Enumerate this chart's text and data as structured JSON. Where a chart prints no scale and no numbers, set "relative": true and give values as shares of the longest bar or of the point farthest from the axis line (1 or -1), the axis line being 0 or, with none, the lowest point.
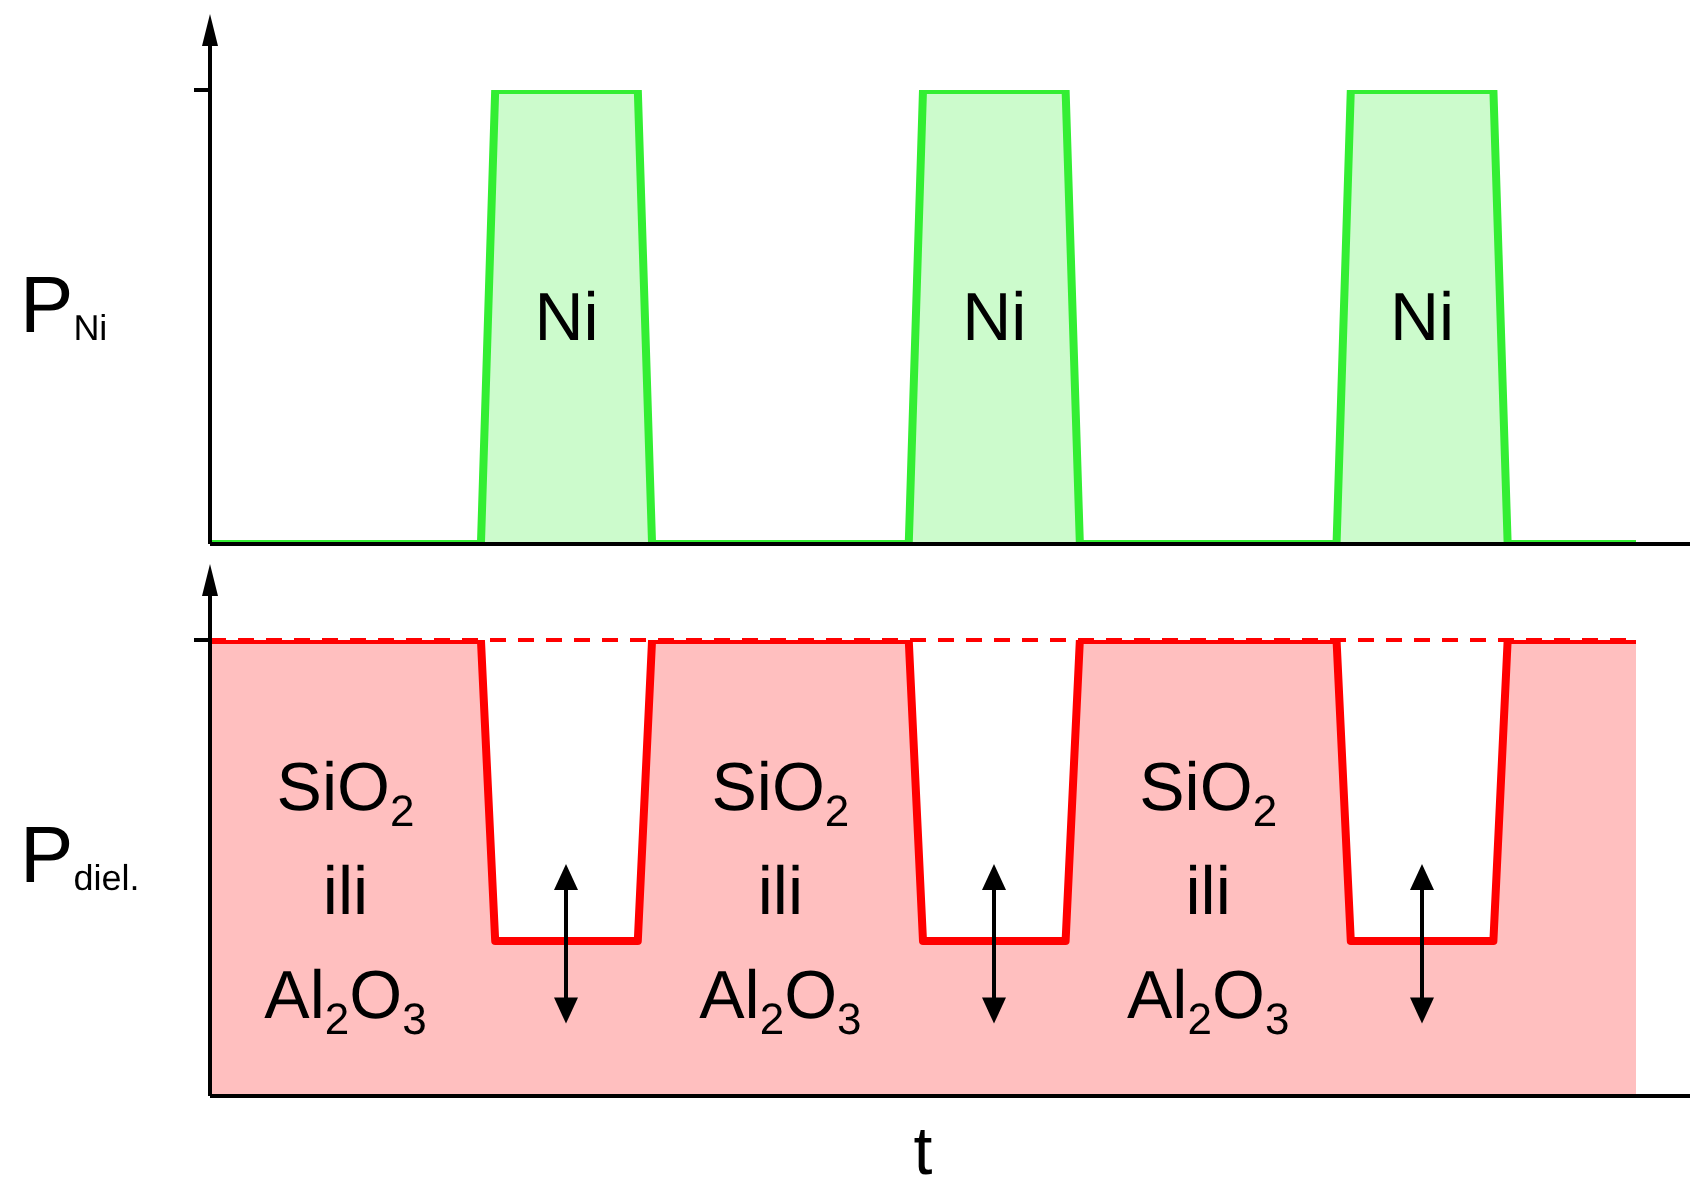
{
  "chart_data": [
    {
      "type": "area",
      "relative": true,
      "tick_labels": false,
      "ylabel": "P$_{Ni}$",
      "categories": [
        null,
        null,
        null,
        null,
        null,
        null,
        null,
        null,
        null,
        null,
        null,
        null,
        null,
        null,
        null,
        null,
        null,
        null,
        null,
        null,
        null,
        null,
        null,
        null,
        null,
        null,
        null,
        null,
        null,
        null,
        null,
        null,
        null,
        null,
        null,
        null,
        null,
        null,
        null,
        null,
        null,
        null,
        null,
        null,
        null,
        null,
        null,
        null,
        null,
        null,
        null,
        null,
        null,
        null,
        null,
        null,
        null,
        null,
        null,
        null,
        null,
        null,
        null,
        null,
        null,
        null,
        null,
        null,
        null,
        null,
        null,
        null,
        null,
        null,
        null,
        null,
        null,
        null,
        null,
        null,
        null,
        null,
        null,
        null,
        null,
        null,
        null,
        null,
        null,
        null,
        null,
        null,
        null,
        null,
        null,
        null,
        null,
        null,
        null,
        null,
        null
      ],
      "series": [
        {
          "color": "#33ee33",
          "values": [
            0,
            0,
            0,
            0,
            0,
            0,
            0,
            0,
            0,
            0,
            0,
            0,
            0,
            0,
            0,
            0,
            0,
            0,
            0,
            0,
            1,
            1,
            1,
            1,
            1,
            1,
            1,
            1,
            1,
            1,
            1,
            0,
            0,
            0,
            0,
            0,
            0,
            0,
            0,
            0,
            0,
            0,
            0,
            0,
            0,
            0,
            0,
            0,
            0,
            0,
            1,
            1,
            1,
            1,
            1,
            1,
            1,
            1,
            1,
            1,
            1,
            0,
            0,
            0,
            0,
            0,
            0,
            0,
            0,
            0,
            0,
            0,
            0,
            0,
            0,
            0,
            0,
            0,
            0,
            0,
            1,
            1,
            1,
            1,
            1,
            1,
            1,
            1,
            1,
            1,
            1,
            0,
            0,
            0,
            0,
            0,
            0,
            0,
            0,
            0,
            0
          ]
        }
      ],
      "annotations": [
        "Ni",
        "Ni",
        "Ni"
      ]
    },
    {
      "type": "area",
      "relative": true,
      "tick_labels": false,
      "ylabel": "P$_{diel.}$",
      "xlabel": "t",
      "categories": [
        null,
        null,
        null,
        null,
        null,
        null,
        null,
        null,
        null,
        null,
        null,
        null,
        null,
        null,
        null,
        null,
        null,
        null,
        null,
        null,
        null,
        null,
        null,
        null,
        null,
        null,
        null,
        null,
        null,
        null,
        null,
        null,
        null,
        null,
        null,
        null,
        null,
        null,
        null,
        null,
        null,
        null,
        null,
        null,
        null,
        null,
        null,
        null,
        null,
        null,
        null,
        null,
        null,
        null,
        null,
        null,
        null,
        null,
        null,
        null,
        null,
        null,
        null,
        null,
        null,
        null,
        null,
        null,
        null,
        null,
        null,
        null,
        null,
        null,
        null,
        null,
        null,
        null,
        null,
        null,
        null,
        null,
        null,
        null,
        null,
        null,
        null,
        null,
        null,
        null,
        null,
        null,
        null,
        null,
        null,
        null,
        null,
        null,
        null,
        null,
        null
      ],
      "series": [
        {
          "color": "#ff0000",
          "values": [
            1,
            1,
            1,
            1,
            1,
            1,
            1,
            1,
            1,
            1,
            1,
            1,
            1,
            1,
            1,
            1,
            1,
            1,
            1,
            1,
            0.34,
            0.34,
            0.34,
            0.34,
            0.34,
            0.34,
            0.34,
            0.34,
            0.34,
            0.34,
            0.34,
            1,
            1,
            1,
            1,
            1,
            1,
            1,
            1,
            1,
            1,
            1,
            1,
            1,
            1,
            1,
            1,
            1,
            1,
            1,
            0.34,
            0.34,
            0.34,
            0.34,
            0.34,
            0.34,
            0.34,
            0.34,
            0.34,
            0.34,
            0.34,
            1,
            1,
            1,
            1,
            1,
            1,
            1,
            1,
            1,
            1,
            1,
            1,
            1,
            1,
            1,
            1,
            1,
            1,
            1,
            0.34,
            0.34,
            0.34,
            0.34,
            0.34,
            0.34,
            0.34,
            0.34,
            0.34,
            0.34,
            0.34,
            1,
            1,
            1,
            1,
            1,
            1,
            1,
            1,
            1,
            1
          ]
        }
      ],
      "ref_lines": [
        {
          "axis": "y",
          "value": 1,
          "color": "#ff0000",
          "line_style": "dashed"
        }
      ],
      "annotations": [
        "SiO$_{2}$\nili\nAl$_{2}$O$_{3}$",
        "SiO$_{2}$\nili\nAl$_{2}$O$_{3}$",
        "SiO$_{2}$\nili\nAl$_{2}$O$_{3}$"
      ]
    }
  ]
}
